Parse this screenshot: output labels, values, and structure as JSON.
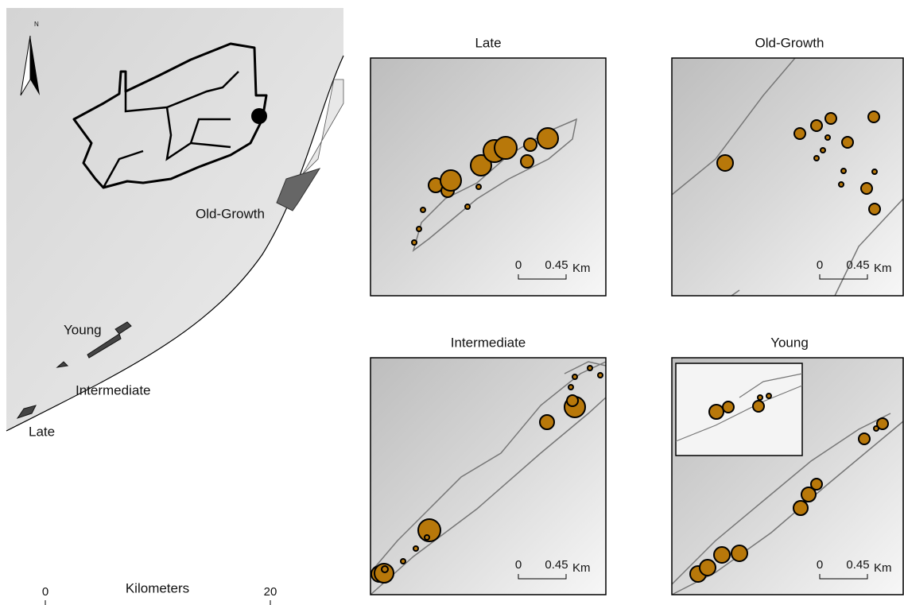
{
  "overview": {
    "north": "N",
    "labels": {
      "old_growth": "Old-Growth",
      "young": "Young",
      "intermediate": "Intermediate",
      "late": "Late"
    },
    "scale": {
      "title": "Kilometers",
      "start": "0",
      "end": "20"
    }
  },
  "panels": [
    {
      "title": "Late",
      "scale": {
        "start": "0",
        "end": "0.45",
        "unit": "Km"
      }
    },
    {
      "title": "Old-Growth",
      "scale": {
        "start": "0",
        "end": "0.45",
        "unit": "Km"
      }
    },
    {
      "title": "Intermediate",
      "scale": {
        "start": "0",
        "end": "0.45",
        "unit": "Km"
      }
    },
    {
      "title": "Young",
      "scale": {
        "start": "0",
        "end": "0.45",
        "unit": "Km"
      }
    }
  ]
}
